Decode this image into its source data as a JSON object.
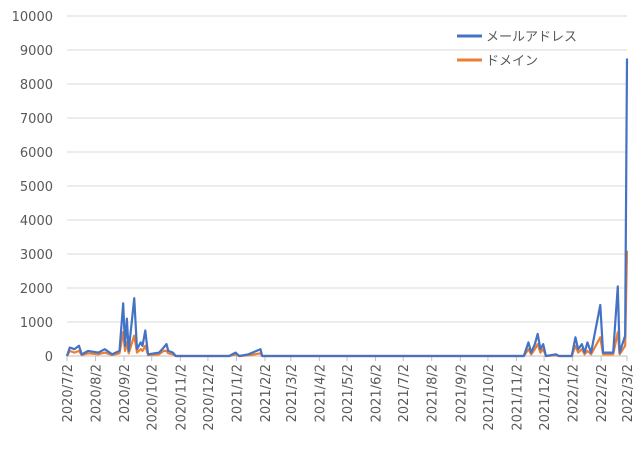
{
  "chart_data": {
    "type": "line",
    "x": [
      "2020/7/2",
      "2020/7/5",
      "2020/7/10",
      "2020/7/15",
      "2020/7/18",
      "2020/7/25",
      "2020/8/5",
      "2020/8/12",
      "2020/8/20",
      "2020/8/28",
      "2020/9/1",
      "2020/9/3",
      "2020/9/5",
      "2020/9/7",
      "2020/9/13",
      "2020/9/16",
      "2020/9/20",
      "2020/9/22",
      "2020/9/25",
      "2020/9/28",
      "2020/10/10",
      "2020/10/15",
      "2020/10/18",
      "2020/10/20",
      "2020/10/25",
      "2020/10/28",
      "2020/12/25",
      "2021/1/1",
      "2021/1/5",
      "2021/1/15",
      "2021/1/28",
      "2021/1/30",
      "2021/11/10",
      "2021/11/15",
      "2021/11/18",
      "2021/11/22",
      "2021/11/25",
      "2021/11/28",
      "2021/12/1",
      "2021/12/4",
      "2021/12/15",
      "2021/12/18",
      "2022/1/1",
      "2022/1/5",
      "2022/1/8",
      "2022/1/12",
      "2022/1/15",
      "2022/1/18",
      "2022/1/22",
      "2022/2/1",
      "2022/2/4",
      "2022/2/15",
      "2022/2/20",
      "2022/2/22",
      "2022/2/28",
      "2022/3/2"
    ],
    "series": [
      {
        "name": "メールアドレス",
        "color": "#4472c4",
        "values": [
          0,
          250,
          200,
          300,
          50,
          150,
          100,
          200,
          50,
          150,
          1550,
          300,
          1100,
          150,
          1700,
          200,
          400,
          300,
          750,
          50,
          100,
          250,
          350,
          150,
          100,
          0,
          0,
          100,
          0,
          50,
          200,
          0,
          0,
          400,
          100,
          350,
          650,
          200,
          350,
          0,
          50,
          0,
          0,
          550,
          200,
          350,
          100,
          400,
          100,
          1500,
          100,
          100,
          2050,
          100,
          600,
          8750
        ]
      },
      {
        "name": "ドメイン",
        "color": "#ed7d31",
        "values": [
          0,
          150,
          100,
          150,
          30,
          80,
          50,
          100,
          30,
          80,
          700,
          150,
          400,
          80,
          600,
          100,
          200,
          150,
          300,
          30,
          50,
          150,
          150,
          80,
          50,
          0,
          0,
          50,
          0,
          20,
          80,
          0,
          0,
          200,
          50,
          200,
          350,
          100,
          200,
          0,
          20,
          0,
          0,
          300,
          100,
          200,
          50,
          150,
          50,
          550,
          50,
          50,
          700,
          50,
          300,
          3100
        ]
      }
    ],
    "xlim": [
      "2020/7/2",
      "2022/3/2"
    ],
    "xticks": [
      "2020/7/2",
      "2020/8/2",
      "2020/9/2",
      "2020/10/2",
      "2020/11/2",
      "2020/12/2",
      "2021/1/2",
      "2021/2/2",
      "2021/3/2",
      "2021/4/2",
      "2021/5/2",
      "2021/6/2",
      "2021/7/2",
      "2021/8/2",
      "2021/9/2",
      "2021/10/2",
      "2021/11/2",
      "2021/12/2",
      "2022/1/2",
      "2022/2/2",
      "2022/3/2"
    ],
    "ylim": [
      0,
      10000
    ],
    "yticks": [
      0,
      1000,
      2000,
      3000,
      4000,
      5000,
      6000,
      7000,
      8000,
      9000,
      10000
    ],
    "grid": true
  }
}
